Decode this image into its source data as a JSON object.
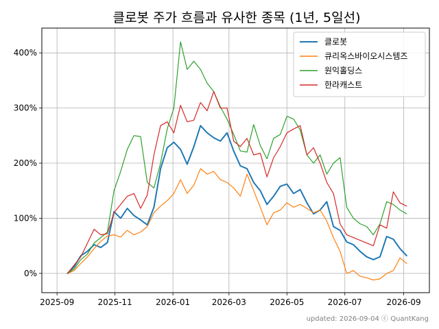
{
  "chart_data": {
    "type": "line",
    "title": "클로봇 주가 흐름과 유사한 종목 (1년, 5일선)",
    "xlabel": "",
    "ylabel": "",
    "x_ticks": [
      "2025-09",
      "2025-11",
      "2026-01",
      "2026-03",
      "2026-05",
      "2026-07",
      "2026-09"
    ],
    "y_ticks": [
      "0%",
      "100%",
      "200%",
      "300%",
      "400%"
    ],
    "y_tick_values": [
      0,
      100,
      200,
      300,
      400
    ],
    "ylim": [
      -35,
      445
    ],
    "xlim": [
      "2025-08-16",
      "2026-09-28"
    ],
    "grid": true,
    "legend_position": "top-right",
    "footer": "updated: 2026-09-04 ⓒ QuantKang",
    "series": [
      {
        "name": "클로봇",
        "color": "#1f77b4",
        "points": [
          [
            "2025-09-12",
            0
          ],
          [
            "2025-09-19",
            12
          ],
          [
            "2025-09-26",
            32
          ],
          [
            "2025-10-03",
            40
          ],
          [
            "2025-10-10",
            52
          ],
          [
            "2025-10-17",
            47
          ],
          [
            "2025-10-24",
            56
          ],
          [
            "2025-10-31",
            112
          ],
          [
            "2025-11-07",
            100
          ],
          [
            "2025-11-14",
            118
          ],
          [
            "2025-11-21",
            105
          ],
          [
            "2025-11-28",
            97
          ],
          [
            "2025-12-05",
            88
          ],
          [
            "2025-12-12",
            120
          ],
          [
            "2025-12-19",
            190
          ],
          [
            "2025-12-26",
            228
          ],
          [
            "2026-01-02",
            238
          ],
          [
            "2026-01-09",
            225
          ],
          [
            "2026-01-16",
            198
          ],
          [
            "2026-01-23",
            230
          ],
          [
            "2026-01-30",
            268
          ],
          [
            "2026-02-06",
            255
          ],
          [
            "2026-02-13",
            246
          ],
          [
            "2026-02-20",
            240
          ],
          [
            "2026-02-27",
            255
          ],
          [
            "2026-03-06",
            222
          ],
          [
            "2026-03-13",
            195
          ],
          [
            "2026-03-20",
            190
          ],
          [
            "2026-03-27",
            165
          ],
          [
            "2026-04-03",
            150
          ],
          [
            "2026-04-10",
            125
          ],
          [
            "2026-04-17",
            140
          ],
          [
            "2026-04-24",
            158
          ],
          [
            "2026-05-01",
            162
          ],
          [
            "2026-05-08",
            145
          ],
          [
            "2026-05-15",
            152
          ],
          [
            "2026-05-22",
            128
          ],
          [
            "2026-05-29",
            108
          ],
          [
            "2026-06-05",
            115
          ],
          [
            "2026-06-12",
            130
          ],
          [
            "2026-06-19",
            85
          ],
          [
            "2026-06-26",
            78
          ],
          [
            "2026-07-03",
            57
          ],
          [
            "2026-07-10",
            52
          ],
          [
            "2026-07-17",
            40
          ],
          [
            "2026-07-24",
            30
          ],
          [
            "2026-07-31",
            25
          ],
          [
            "2026-08-07",
            30
          ],
          [
            "2026-08-14",
            67
          ],
          [
            "2026-08-21",
            62
          ],
          [
            "2026-08-28",
            45
          ],
          [
            "2026-09-04",
            32
          ]
        ]
      },
      {
        "name": "큐리옥스바이오시스템즈",
        "color": "#ff7f0e",
        "points": [
          [
            "2025-09-12",
            0
          ],
          [
            "2025-09-19",
            5
          ],
          [
            "2025-09-26",
            18
          ],
          [
            "2025-10-03",
            30
          ],
          [
            "2025-10-10",
            45
          ],
          [
            "2025-10-17",
            58
          ],
          [
            "2025-10-24",
            68
          ],
          [
            "2025-10-31",
            70
          ],
          [
            "2025-11-07",
            66
          ],
          [
            "2025-11-14",
            78
          ],
          [
            "2025-11-21",
            70
          ],
          [
            "2025-11-28",
            75
          ],
          [
            "2025-12-05",
            85
          ],
          [
            "2025-12-12",
            110
          ],
          [
            "2025-12-19",
            122
          ],
          [
            "2025-12-26",
            132
          ],
          [
            "2026-01-02",
            145
          ],
          [
            "2026-01-09",
            170
          ],
          [
            "2026-01-16",
            145
          ],
          [
            "2026-01-23",
            160
          ],
          [
            "2026-01-30",
            190
          ],
          [
            "2026-02-06",
            180
          ],
          [
            "2026-02-13",
            185
          ],
          [
            "2026-02-20",
            170
          ],
          [
            "2026-02-27",
            165
          ],
          [
            "2026-03-06",
            155
          ],
          [
            "2026-03-13",
            140
          ],
          [
            "2026-03-20",
            180
          ],
          [
            "2026-03-27",
            150
          ],
          [
            "2026-04-03",
            120
          ],
          [
            "2026-04-10",
            88
          ],
          [
            "2026-04-17",
            110
          ],
          [
            "2026-04-24",
            115
          ],
          [
            "2026-05-01",
            128
          ],
          [
            "2026-05-08",
            120
          ],
          [
            "2026-05-15",
            125
          ],
          [
            "2026-05-22",
            118
          ],
          [
            "2026-05-29",
            110
          ],
          [
            "2026-06-05",
            115
          ],
          [
            "2026-06-12",
            95
          ],
          [
            "2026-06-19",
            65
          ],
          [
            "2026-06-26",
            40
          ],
          [
            "2026-07-03",
            0
          ],
          [
            "2026-07-10",
            5
          ],
          [
            "2026-07-17",
            -5
          ],
          [
            "2026-07-24",
            -8
          ],
          [
            "2026-07-31",
            -12
          ],
          [
            "2026-08-07",
            -10
          ],
          [
            "2026-08-14",
            0
          ],
          [
            "2026-08-21",
            5
          ],
          [
            "2026-08-28",
            28
          ],
          [
            "2026-09-04",
            18
          ]
        ]
      },
      {
        "name": "원익홀딩스",
        "color": "#2ca02c",
        "points": [
          [
            "2025-09-12",
            0
          ],
          [
            "2025-09-19",
            8
          ],
          [
            "2025-09-26",
            25
          ],
          [
            "2025-10-03",
            35
          ],
          [
            "2025-10-10",
            55
          ],
          [
            "2025-10-17",
            65
          ],
          [
            "2025-10-24",
            75
          ],
          [
            "2025-10-31",
            150
          ],
          [
            "2025-11-07",
            185
          ],
          [
            "2025-11-14",
            225
          ],
          [
            "2025-11-21",
            250
          ],
          [
            "2025-11-28",
            248
          ],
          [
            "2025-12-05",
            165
          ],
          [
            "2025-12-12",
            155
          ],
          [
            "2025-12-19",
            200
          ],
          [
            "2025-12-26",
            262
          ],
          [
            "2026-01-02",
            300
          ],
          [
            "2026-01-09",
            420
          ],
          [
            "2026-01-16",
            370
          ],
          [
            "2026-01-23",
            385
          ],
          [
            "2026-01-30",
            370
          ],
          [
            "2026-02-06",
            345
          ],
          [
            "2026-02-13",
            330
          ],
          [
            "2026-02-20",
            302
          ],
          [
            "2026-02-27",
            280
          ],
          [
            "2026-03-06",
            252
          ],
          [
            "2026-03-13",
            222
          ],
          [
            "2026-03-20",
            220
          ],
          [
            "2026-03-27",
            270
          ],
          [
            "2026-04-03",
            232
          ],
          [
            "2026-04-10",
            208
          ],
          [
            "2026-04-17",
            245
          ],
          [
            "2026-04-24",
            252
          ],
          [
            "2026-05-01",
            285
          ],
          [
            "2026-05-08",
            280
          ],
          [
            "2026-05-15",
            260
          ],
          [
            "2026-05-22",
            215
          ],
          [
            "2026-05-29",
            200
          ],
          [
            "2026-06-05",
            215
          ],
          [
            "2026-06-12",
            180
          ],
          [
            "2026-06-19",
            200
          ],
          [
            "2026-06-26",
            210
          ],
          [
            "2026-07-03",
            120
          ],
          [
            "2026-07-10",
            100
          ],
          [
            "2026-07-17",
            90
          ],
          [
            "2026-07-24",
            85
          ],
          [
            "2026-07-31",
            70
          ],
          [
            "2026-08-07",
            90
          ],
          [
            "2026-08-14",
            130
          ],
          [
            "2026-08-21",
            125
          ],
          [
            "2026-08-28",
            115
          ],
          [
            "2026-09-04",
            108
          ]
        ]
      },
      {
        "name": "한라캐스트",
        "color": "#d62728",
        "points": [
          [
            "2025-09-12",
            0
          ],
          [
            "2025-09-19",
            15
          ],
          [
            "2025-09-26",
            30
          ],
          [
            "2025-10-03",
            55
          ],
          [
            "2025-10-10",
            80
          ],
          [
            "2025-10-17",
            70
          ],
          [
            "2025-10-24",
            72
          ],
          [
            "2025-10-31",
            110
          ],
          [
            "2025-11-07",
            125
          ],
          [
            "2025-11-14",
            140
          ],
          [
            "2025-11-21",
            145
          ],
          [
            "2025-11-28",
            118
          ],
          [
            "2025-12-05",
            142
          ],
          [
            "2025-12-12",
            215
          ],
          [
            "2025-12-19",
            268
          ],
          [
            "2025-12-26",
            275
          ],
          [
            "2026-01-02",
            255
          ],
          [
            "2026-01-09",
            305
          ],
          [
            "2026-01-16",
            275
          ],
          [
            "2026-01-23",
            278
          ],
          [
            "2026-01-30",
            310
          ],
          [
            "2026-02-06",
            295
          ],
          [
            "2026-02-13",
            330
          ],
          [
            "2026-02-20",
            300
          ],
          [
            "2026-02-27",
            300
          ],
          [
            "2026-03-06",
            240
          ],
          [
            "2026-03-13",
            230
          ],
          [
            "2026-03-20",
            245
          ],
          [
            "2026-03-27",
            215
          ],
          [
            "2026-04-03",
            218
          ],
          [
            "2026-04-10",
            175
          ],
          [
            "2026-04-17",
            210
          ],
          [
            "2026-04-24",
            230
          ],
          [
            "2026-05-01",
            255
          ],
          [
            "2026-05-08",
            262
          ],
          [
            "2026-05-15",
            268
          ],
          [
            "2026-05-22",
            215
          ],
          [
            "2026-05-29",
            228
          ],
          [
            "2026-06-05",
            200
          ],
          [
            "2026-06-12",
            165
          ],
          [
            "2026-06-19",
            145
          ],
          [
            "2026-06-26",
            90
          ],
          [
            "2026-07-03",
            70
          ],
          [
            "2026-07-10",
            65
          ],
          [
            "2026-07-17",
            60
          ],
          [
            "2026-07-24",
            55
          ],
          [
            "2026-07-31",
            50
          ],
          [
            "2026-08-07",
            88
          ],
          [
            "2026-08-14",
            82
          ],
          [
            "2026-08-21",
            148
          ],
          [
            "2026-08-28",
            128
          ],
          [
            "2026-09-04",
            122
          ]
        ]
      }
    ]
  }
}
